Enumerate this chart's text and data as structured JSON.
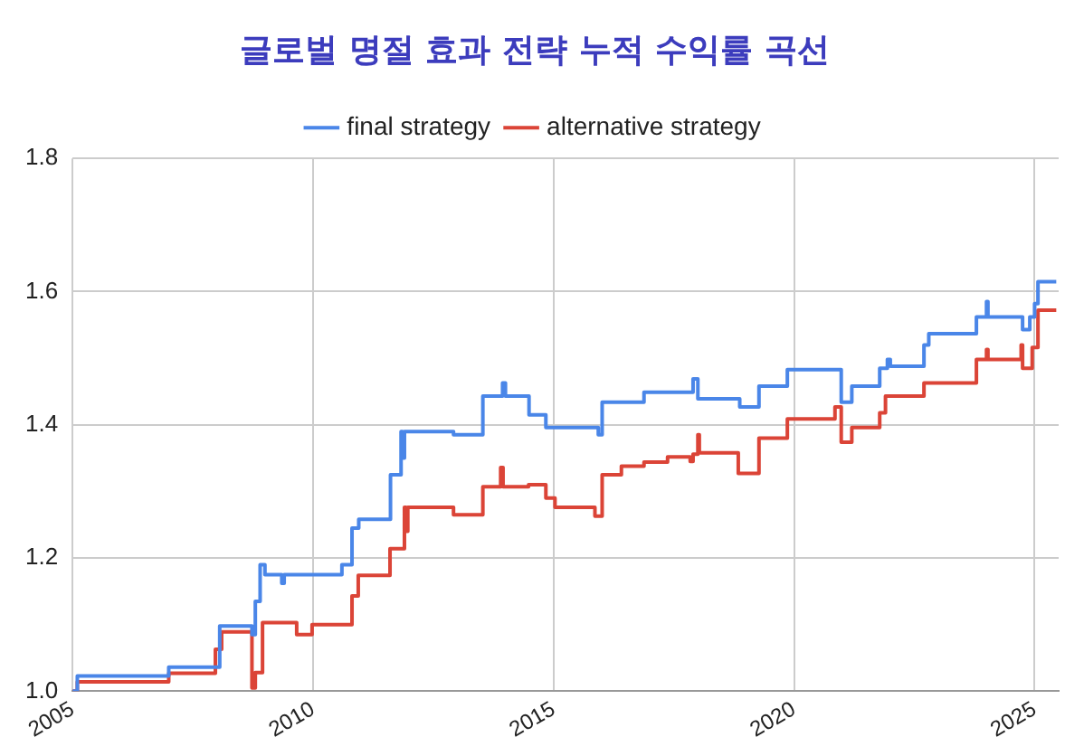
{
  "chart_data": {
    "type": "step",
    "title": "글로벌 명절 효과 전략 누적 수익률 곡선",
    "series": [
      {
        "name": "final strategy",
        "color": "#4a86e8",
        "x": [
          2005.0,
          2005.1,
          2007.0,
          2008.06,
          2008.73,
          2008.8,
          2008.9,
          2009.0,
          2009.35,
          2009.4,
          2010.6,
          2010.81,
          2010.95,
          2011.61,
          2011.83,
          2011.86,
          2011.9,
          2012.92,
          2013.53,
          2013.94,
          2014.0,
          2014.49,
          2014.84,
          2015.93,
          2016.01,
          2016.88,
          2017.9,
          2018.0,
          2018.87,
          2019.27,
          2019.86,
          2020.98,
          2021.2,
          2021.78,
          2021.94,
          2022.0,
          2022.7,
          2022.8,
          2023.79,
          2024.0,
          2024.03,
          2024.75,
          2024.9,
          2025.0,
          2025.07,
          2025.45
        ],
        "values": [
          1.0,
          1.023,
          1.036,
          1.098,
          1.085,
          1.135,
          1.19,
          1.175,
          1.162,
          1.175,
          1.19,
          1.245,
          1.258,
          1.325,
          1.39,
          1.35,
          1.39,
          1.385,
          1.443,
          1.463,
          1.443,
          1.415,
          1.396,
          1.385,
          1.434,
          1.449,
          1.469,
          1.439,
          1.427,
          1.458,
          1.483,
          1.434,
          1.458,
          1.485,
          1.498,
          1.488,
          1.52,
          1.537,
          1.562,
          1.585,
          1.562,
          1.543,
          1.562,
          1.582,
          1.615,
          1.615
        ]
      },
      {
        "name": "alternative strategy",
        "color": "#db4437",
        "x": [
          2005.0,
          2005.1,
          2007.0,
          2007.97,
          2008.1,
          2008.73,
          2008.8,
          2008.95,
          2009.66,
          2009.98,
          2010.81,
          2010.94,
          2011.6,
          2011.9,
          2011.93,
          2011.97,
          2012.92,
          2013.53,
          2013.9,
          2013.95,
          2014.48,
          2014.84,
          2015.03,
          2015.86,
          2016.01,
          2016.41,
          2016.88,
          2017.37,
          2017.84,
          2017.9,
          2018.0,
          2018.03,
          2018.84,
          2019.27,
          2019.86,
          2020.85,
          2020.98,
          2021.2,
          2021.78,
          2021.9,
          2022.7,
          2023.79,
          2024.0,
          2024.03,
          2024.72,
          2024.75,
          2024.95,
          2025.07,
          2025.45
        ],
        "values": [
          1.0,
          1.014,
          1.027,
          1.063,
          1.089,
          1.005,
          1.028,
          1.103,
          1.085,
          1.1,
          1.143,
          1.174,
          1.214,
          1.276,
          1.24,
          1.276,
          1.265,
          1.307,
          1.336,
          1.307,
          1.31,
          1.29,
          1.276,
          1.263,
          1.325,
          1.338,
          1.344,
          1.352,
          1.345,
          1.356,
          1.385,
          1.358,
          1.327,
          1.38,
          1.409,
          1.427,
          1.374,
          1.396,
          1.418,
          1.443,
          1.463,
          1.498,
          1.513,
          1.498,
          1.52,
          1.485,
          1.516,
          1.572,
          1.572
        ]
      }
    ],
    "xlim": [
      2005,
      2025.5
    ],
    "xticks": [
      2005,
      2010,
      2015,
      2020,
      2025
    ],
    "ylim": [
      1.0,
      1.8
    ],
    "yticks": [
      {
        "value": 1.0,
        "label": "1.0"
      },
      {
        "value": 1.2,
        "label": "1.2"
      },
      {
        "value": 1.4,
        "label": "1.4"
      },
      {
        "value": 1.6,
        "label": "1.6"
      },
      {
        "value": 1.8,
        "label": "1.8"
      }
    ],
    "grid": true,
    "legend": "top",
    "marker": "none"
  }
}
